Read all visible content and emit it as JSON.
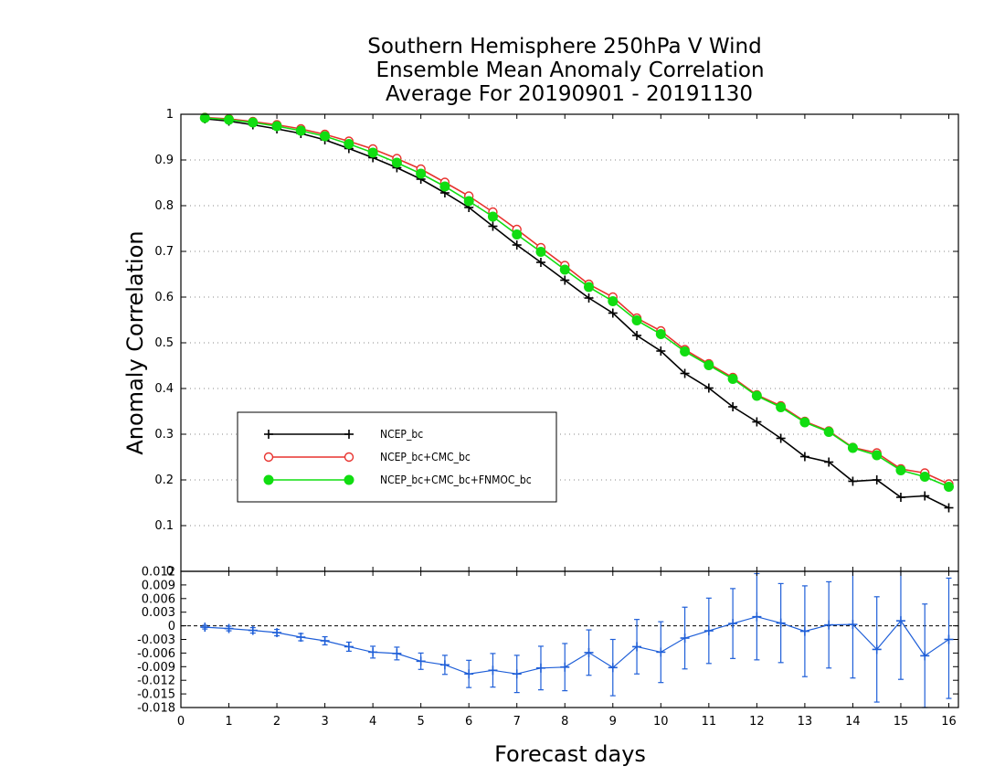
{
  "chart_data": [
    {
      "type": "line",
      "title_lines": [
        "Southern Hemisphere 250hPa V Wind",
        "Ensemble Mean Anomaly Correlation",
        "Average For 20190901 - 20191130"
      ],
      "ylabel": "Anomaly Correlation",
      "ylim": [
        0,
        1
      ],
      "yticks": [
        "0",
        "0.1",
        "0.2",
        "0.3",
        "0.4",
        "0.5",
        "0.6",
        "0.7",
        "0.8",
        "0.9",
        "1"
      ],
      "grid": "dotted horizontal",
      "legend_position": "lower-left",
      "x": [
        0.5,
        1,
        1.5,
        2,
        2.5,
        3,
        3.5,
        4,
        4.5,
        5,
        5.5,
        6,
        6.5,
        7,
        7.5,
        8,
        8.5,
        9,
        9.5,
        10,
        10.5,
        11,
        11.5,
        12,
        12.5,
        13,
        13.5,
        14,
        14.5,
        15,
        15.5,
        16
      ],
      "series": [
        {
          "name": "NCEP_bc",
          "color": "#000000",
          "marker": "plus",
          "values": [
            0.99,
            0.985,
            0.977,
            0.968,
            0.958,
            0.944,
            0.925,
            0.905,
            0.883,
            0.858,
            0.828,
            0.796,
            0.755,
            0.714,
            0.676,
            0.637,
            0.598,
            0.565,
            0.516,
            0.482,
            0.433,
            0.401,
            0.36,
            0.327,
            0.291,
            0.251,
            0.239,
            0.197,
            0.2,
            0.162,
            0.165,
            0.139
          ]
        },
        {
          "name": "NCEP_bc+CMC_bc",
          "color": "#e8322e",
          "marker": "open-circle",
          "values": [
            0.993,
            0.99,
            0.984,
            0.977,
            0.968,
            0.956,
            0.941,
            0.924,
            0.903,
            0.88,
            0.851,
            0.821,
            0.786,
            0.748,
            0.708,
            0.669,
            0.628,
            0.6,
            0.554,
            0.526,
            0.485,
            0.454,
            0.424,
            0.386,
            0.362,
            0.328,
            0.307,
            0.271,
            0.259,
            0.224,
            0.215,
            0.191
          ]
        },
        {
          "name": "NCEP_bc+CMC_bc+FNMOC_bc",
          "color": "#11dd11",
          "marker": "filled-circle",
          "values": [
            0.992,
            0.988,
            0.982,
            0.974,
            0.964,
            0.952,
            0.935,
            0.916,
            0.894,
            0.87,
            0.842,
            0.81,
            0.776,
            0.737,
            0.699,
            0.66,
            0.622,
            0.591,
            0.549,
            0.519,
            0.481,
            0.451,
            0.421,
            0.384,
            0.359,
            0.326,
            0.305,
            0.27,
            0.254,
            0.221,
            0.207,
            0.185
          ]
        }
      ]
    },
    {
      "type": "line",
      "xlabel": "Forecast days",
      "ylim": [
        -0.018,
        0.012
      ],
      "yticks": [
        "-0.018",
        "-0.015",
        "-0.012",
        "-0.009",
        "-0.006",
        "-0.003",
        "0",
        "0.003",
        "0.006",
        "0.009",
        "0.012"
      ],
      "xticks": [
        "0",
        "1",
        "2",
        "3",
        "4",
        "5",
        "6",
        "7",
        "8",
        "9",
        "10",
        "11",
        "12",
        "13",
        "14",
        "15",
        "16"
      ],
      "zero_line": "dashed",
      "x": [
        0.5,
        1,
        1.5,
        2,
        2.5,
        3,
        3.5,
        4,
        4.5,
        5,
        5.5,
        6,
        6.5,
        7,
        7.5,
        8,
        8.5,
        9,
        9.5,
        10,
        10.5,
        11,
        11.5,
        12,
        12.5,
        13,
        13.5,
        14,
        14.5,
        15,
        15.5,
        16
      ],
      "series": [
        {
          "name": "",
          "color": "#1f5fd8",
          "marker": "plus",
          "values": [
            -0.0003,
            -0.0006,
            -0.001,
            -0.0015,
            -0.0025,
            -0.0033,
            -0.0046,
            -0.0058,
            -0.0061,
            -0.0078,
            -0.0086,
            -0.0106,
            -0.0098,
            -0.0106,
            -0.0093,
            -0.0091,
            -0.0059,
            -0.0092,
            -0.0046,
            -0.0058,
            -0.0027,
            -0.0011,
            0.0005,
            0.002,
            0.0006,
            -0.0012,
            0.0002,
            0.0003,
            -0.0052,
            0.0011,
            -0.0066,
            -0.003
          ],
          "error_lower": [
            -0.0007,
            -0.0011,
            -0.0016,
            -0.0022,
            -0.0033,
            -0.0042,
            -0.0056,
            -0.0071,
            -0.0075,
            -0.0096,
            -0.0107,
            -0.0136,
            -0.0135,
            -0.0147,
            -0.0141,
            -0.0143,
            -0.0109,
            -0.0154,
            -0.0106,
            -0.0125,
            -0.0095,
            -0.0083,
            -0.0072,
            -0.0075,
            -0.0081,
            -0.0112,
            -0.0093,
            -0.0115,
            -0.0168,
            -0.0118,
            -0.018,
            -0.016
          ],
          "error_upper": [
            0.0001,
            -0.0001,
            -0.0004,
            -0.0008,
            -0.0017,
            -0.0024,
            -0.0036,
            -0.0045,
            -0.0047,
            -0.006,
            -0.0065,
            -0.0076,
            -0.0061,
            -0.0065,
            -0.0045,
            -0.0039,
            -0.0009,
            -0.003,
            0.0014,
            0.0009,
            0.0041,
            0.0061,
            0.0082,
            0.0115,
            0.0093,
            0.0088,
            0.0097,
            0.0121,
            0.0064,
            0.014,
            0.0048,
            0.0105
          ]
        }
      ]
    }
  ]
}
